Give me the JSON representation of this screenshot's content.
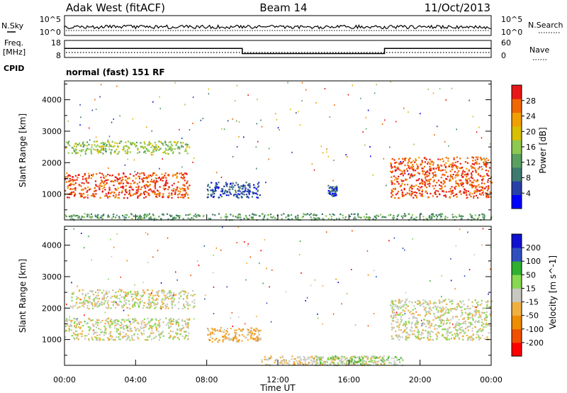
{
  "header": {
    "station": "Adak West (fitACF)",
    "beam": "Beam 14",
    "date": "11/Oct/2013"
  },
  "noise_panel": {
    "left_label": "N.Sky",
    "left_ticks": [
      "10^5",
      "10^0"
    ],
    "right_label": "N.Search",
    "right_ticks": [
      "10^5",
      "10^0"
    ]
  },
  "freq_panel": {
    "left_label_line1": "Freq.",
    "left_label_line2": "[MHz]",
    "left_ticks": [
      "18",
      "8"
    ],
    "right_label": "Nave",
    "right_ticks": [
      "60",
      "0"
    ],
    "cpid_label": "CPID",
    "cpid_text": "normal (fast) 151 RF"
  },
  "legend_colors": {
    "power": [
      "#0000ff",
      "#2840a8",
      "#3e7a70",
      "#5aa060",
      "#8ec850",
      "#d8c000",
      "#f0a000",
      "#f06800",
      "#e81818"
    ],
    "velocity": [
      "#ff0000",
      "#f05000",
      "#f08c00",
      "#f0b040",
      "#c8c8c0",
      "#88d850",
      "#30b030",
      "#3050c0",
      "#1010d0"
    ]
  },
  "chart_data": [
    {
      "type": "heatmap",
      "title": "Power",
      "ylabel": "Slant Range [km]",
      "yticks": [
        "1000",
        "2000",
        "3000",
        "4000"
      ],
      "ylim": [
        180,
        4600
      ],
      "xlim": [
        "00:00",
        "24:00"
      ],
      "colorbar": {
        "label": "Power [dB]",
        "ticks": [
          "4",
          "8",
          "12",
          "16",
          "20",
          "24",
          "28"
        ],
        "range": [
          0,
          32
        ]
      },
      "grid": false,
      "bands": [
        {
          "t_start": 0.0,
          "t_end": 7.0,
          "range_km": [
            900,
            1700
          ],
          "level_db": 28,
          "desc": "main echo"
        },
        {
          "t_start": 0.0,
          "t_end": 7.0,
          "range_km": [
            2300,
            2700
          ],
          "level_db": 16
        },
        {
          "t_start": 8.0,
          "t_end": 11.0,
          "range_km": [
            900,
            1400
          ],
          "level_db": 6
        },
        {
          "t_start": 14.8,
          "t_end": 15.3,
          "range_km": [
            950,
            1300
          ],
          "level_db": 6
        },
        {
          "t_start": 18.3,
          "t_end": 24.0,
          "range_km": [
            900,
            2200
          ],
          "level_db": 28
        },
        {
          "t_start": 0.0,
          "t_end": 24.0,
          "range_km": [
            200,
            400
          ],
          "level_db": 12
        }
      ]
    },
    {
      "type": "heatmap",
      "title": "Velocity",
      "ylabel": "Slant Range [km]",
      "yticks": [
        "1000",
        "2000",
        "3000",
        "4000"
      ],
      "ylim": [
        180,
        4600
      ],
      "xlim": [
        "00:00",
        "24:00"
      ],
      "xticks": [
        "00:00",
        "04:00",
        "08:00",
        "12:00",
        "16:00",
        "20:00",
        "00:00"
      ],
      "xlabel": "Time UT",
      "colorbar": {
        "label": "Velocity [m s^-1]",
        "ticks": [
          "-200",
          "-100",
          "-50",
          "-15",
          "15",
          "50",
          "100",
          "200"
        ],
        "range": [
          -250,
          250
        ]
      },
      "grid": false,
      "bands": [
        {
          "t_start": 0.0,
          "t_end": 7.0,
          "range_km": [
            1000,
            1700
          ],
          "velocity": 0,
          "desc": "ground scatter"
        },
        {
          "t_start": 0.3,
          "t_end": 7.3,
          "range_km": [
            2000,
            2600
          ],
          "velocity": 0
        },
        {
          "t_start": 8.0,
          "t_end": 11.0,
          "range_km": [
            950,
            1400
          ],
          "velocity": -60
        },
        {
          "t_start": 11.0,
          "t_end": 18.0,
          "range_km": [
            200,
            500
          ],
          "velocity": -30
        },
        {
          "t_start": 14.0,
          "t_end": 19.0,
          "range_km": [
            200,
            500
          ],
          "velocity": 40
        },
        {
          "t_start": 18.3,
          "t_end": 24.0,
          "range_km": [
            1000,
            2300
          ],
          "velocity": 0
        }
      ]
    }
  ]
}
